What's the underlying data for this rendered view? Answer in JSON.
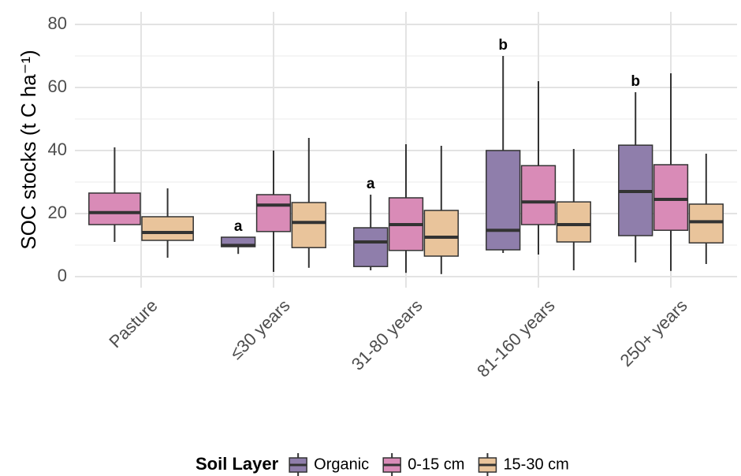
{
  "chart_data": {
    "type": "box",
    "ylabel": "SOC stocks (t C ha⁻¹)",
    "categories": [
      "Pasture",
      "≤30 years",
      "31-80 years",
      "81-160 years",
      "250+ years"
    ],
    "legend_title": "Soil Layer",
    "legend_position": "bottom",
    "grid": true,
    "ylim": [
      -3.5,
      84
    ],
    "yticks": [
      0,
      20,
      40,
      60,
      80
    ],
    "minor_yticks": [
      10,
      30,
      50,
      70
    ],
    "series": [
      {
        "name": "Organic",
        "color": "#8f7eab",
        "whislo": [
          null,
          7.2,
          2,
          7.5,
          4.5
        ],
        "q1": [
          null,
          9.5,
          3.2,
          8.5,
          13
        ],
        "med": [
          null,
          9.9,
          11,
          14.7,
          27
        ],
        "q3": [
          null,
          12.5,
          15.5,
          40,
          41.7
        ],
        "whishi": [
          null,
          12.5,
          26,
          70,
          58.5
        ],
        "labels": [
          null,
          "a",
          "a",
          "b",
          "b"
        ]
      },
      {
        "name": "0-15 cm",
        "color": "#d98bb7",
        "whislo": [
          11,
          1.5,
          1.2,
          7,
          1.8
        ],
        "q1": [
          16.5,
          14.3,
          8.3,
          16.5,
          14.7
        ],
        "med": [
          20.3,
          22.7,
          16.5,
          23.7,
          24.5
        ],
        "q3": [
          26.5,
          26,
          25,
          35.2,
          35.5
        ],
        "whishi": [
          41,
          40,
          42,
          62,
          64.5
        ]
      },
      {
        "name": "15-30 cm",
        "color": "#e9c49b",
        "whislo": [
          6,
          2.8,
          0.8,
          2,
          4
        ],
        "q1": [
          11.5,
          9.2,
          6.5,
          11,
          10.7
        ],
        "med": [
          14,
          17.2,
          12.5,
          16.5,
          17.4
        ],
        "q3": [
          19,
          23.5,
          21,
          23.7,
          23
        ],
        "whishi": [
          28,
          44,
          41.5,
          40.5,
          39
        ]
      }
    ]
  }
}
